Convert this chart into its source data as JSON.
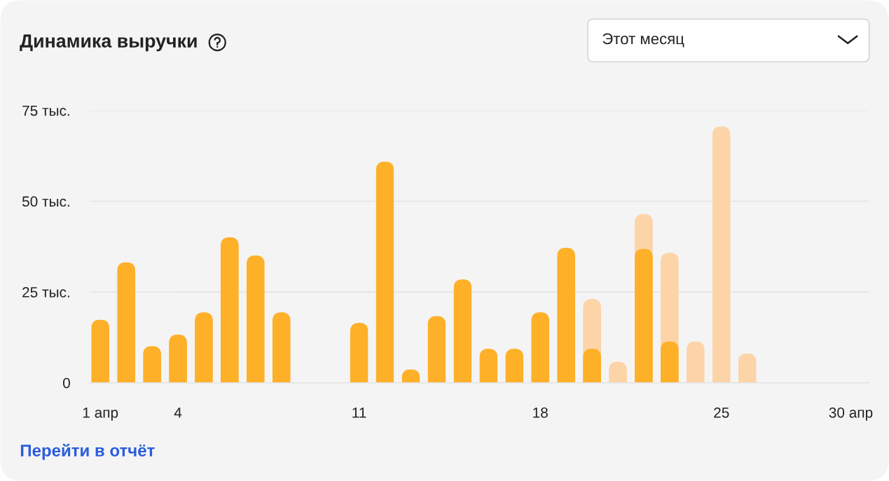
{
  "chart_data": {
    "type": "bar",
    "title": "Динамика выручки",
    "categories": [
      "1 апр",
      null,
      null,
      "4",
      null,
      null,
      null,
      null,
      null,
      null,
      "11",
      null,
      null,
      null,
      null,
      null,
      null,
      "18",
      null,
      null,
      null,
      null,
      null,
      null,
      "25",
      null,
      null,
      null,
      null,
      "30 апр"
    ],
    "series": [
      {
        "color": "#fdd4a8",
        "values": [
          null,
          null,
          null,
          null,
          null,
          null,
          null,
          null,
          null,
          null,
          null,
          null,
          null,
          null,
          null,
          null,
          null,
          null,
          null,
          23.1,
          5.8,
          46.5,
          35.8,
          11.4,
          70.6,
          8.1,
          null,
          null,
          null,
          null
        ]
      },
      {
        "color": "#feb028",
        "values": [
          17.4,
          33.2,
          10.1,
          13.3,
          19.4,
          40.1,
          35.1,
          19.4,
          null,
          null,
          16.5,
          60.9,
          3.7,
          18.4,
          28.5,
          9.4,
          9.4,
          19.4,
          37.2,
          9.4,
          null,
          36.9,
          11.4,
          null,
          null,
          null,
          null,
          null,
          null,
          null
        ]
      }
    ],
    "ylim": [
      0,
      75
    ],
    "yticks": [
      0,
      {
        "value": 25,
        "label": "25 тыс."
      },
      {
        "value": 50,
        "label": "50 тыс."
      },
      {
        "value": 75,
        "label": "75 тыс."
      }
    ],
    "grid": "y",
    "annotations": [
      "Этот месяц",
      "Перейти в отчёт"
    ]
  }
}
